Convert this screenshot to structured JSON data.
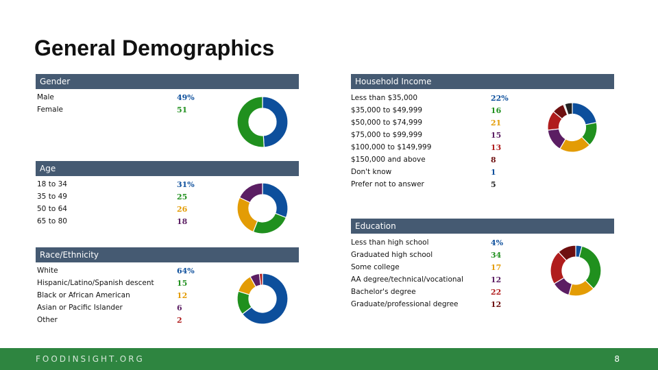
{
  "page": {
    "title": "General Demographics",
    "page_number": "8",
    "logo_text": "FOODINSIGHT.ORG"
  },
  "colors": {
    "header_bg": "#455a72",
    "footer_bg": "#2e8540"
  },
  "chart_data": [
    {
      "type": "pie",
      "title": "Gender",
      "categories": [
        "Male",
        "Female"
      ],
      "labels": [
        "49%",
        "51"
      ],
      "values": [
        49,
        51
      ],
      "colors": [
        "#0d4f9c",
        "#20901e"
      ]
    },
    {
      "type": "pie",
      "title": "Age",
      "categories": [
        "18 to 34",
        "35 to 49",
        "50 to 64",
        "65 to 80"
      ],
      "labels": [
        "31%",
        "25",
        "26",
        "18"
      ],
      "values": [
        31,
        25,
        26,
        18
      ],
      "colors": [
        "#0d4f9c",
        "#20901e",
        "#e39c05",
        "#5b1e63"
      ]
    },
    {
      "type": "pie",
      "title": "Race/Ethnicity",
      "categories": [
        "White",
        "Hispanic/Latino/Spanish descent",
        "Black or African American",
        "Asian or Pacific Islander",
        "Other"
      ],
      "labels": [
        "64%",
        "15",
        "12",
        "6",
        "2"
      ],
      "values": [
        64,
        15,
        12,
        6,
        2
      ],
      "colors": [
        "#0d4f9c",
        "#20901e",
        "#e39c05",
        "#5b1e63",
        "#b01d1d"
      ]
    },
    {
      "type": "pie",
      "title": "Household Income",
      "categories": [
        "Less than $35,000",
        "$35,000 to $49,999",
        "$50,000 to $74,999",
        "$75,000 to $99,999",
        "$100,000 to $149,999",
        "$150,000 and above",
        "Don't know",
        "Prefer not to answer"
      ],
      "labels": [
        "22%",
        "16",
        "21",
        "15",
        "13",
        "8",
        "1",
        "5"
      ],
      "values": [
        22,
        16,
        21,
        15,
        13,
        8,
        1,
        5
      ],
      "colors": [
        "#0d4f9c",
        "#20901e",
        "#e39c05",
        "#5b1e63",
        "#b01d1d",
        "#6e0f0f",
        "#cfcfcf",
        "#222222"
      ]
    },
    {
      "type": "pie",
      "title": "Education",
      "categories": [
        "Less than high school",
        "Graduated high school",
        "Some college",
        "AA degree/technical/vocational",
        "Bachelor's degree",
        "Graduate/professional degree"
      ],
      "labels": [
        "4%",
        "34",
        "17",
        "12",
        "22",
        "12"
      ],
      "values": [
        4,
        34,
        17,
        12,
        22,
        12
      ],
      "colors": [
        "#0d4f9c",
        "#20901e",
        "#e39c05",
        "#5b1e63",
        "#b01d1d",
        "#6e0f0f"
      ]
    }
  ]
}
